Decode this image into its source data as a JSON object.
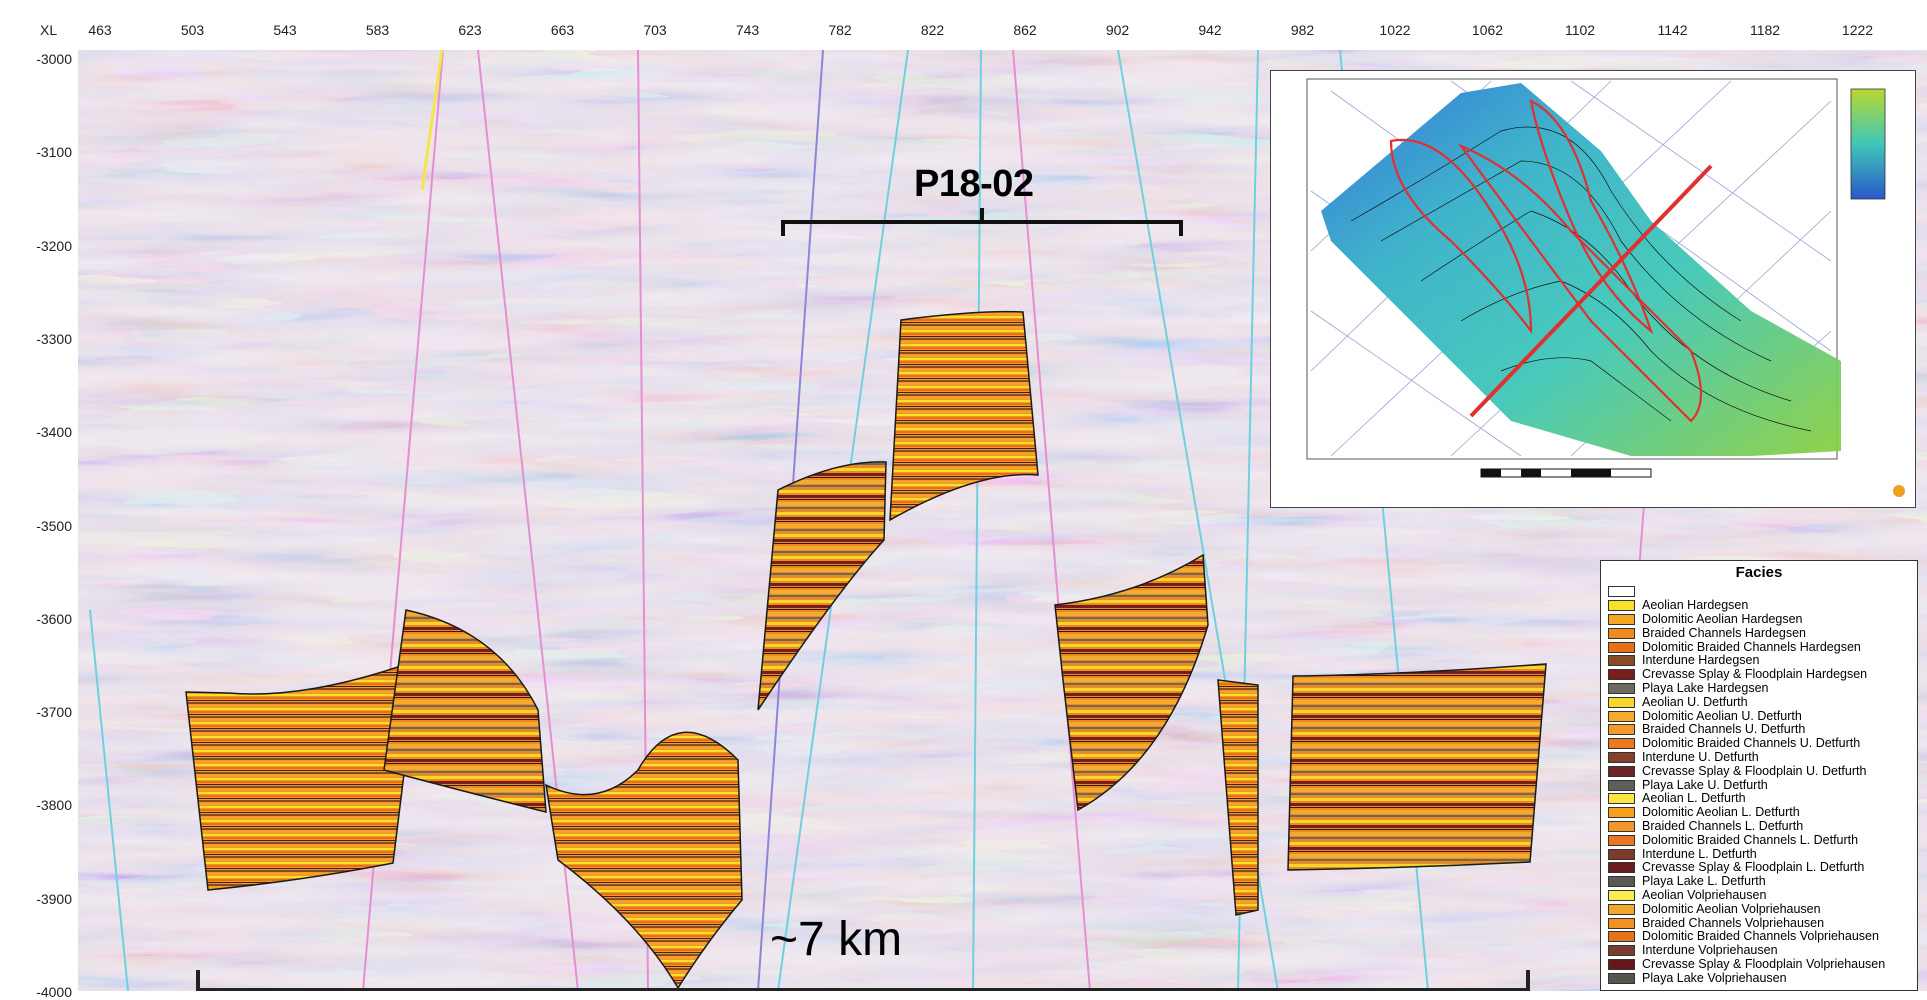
{
  "axis": {
    "x_prefix": "XL",
    "x_ticks": [
      "463",
      "503",
      "543",
      "583",
      "623",
      "663",
      "703",
      "743",
      "782",
      "822",
      "862",
      "902",
      "942",
      "982",
      "1022",
      "1062",
      "1102",
      "1142",
      "1182",
      "1222"
    ],
    "y_ticks": [
      "-3000",
      "-3100",
      "-3200",
      "-3300",
      "-3400",
      "-3500",
      "-3600",
      "-3700",
      "-3800",
      "-3900",
      "-4000"
    ]
  },
  "section": {
    "well_label": "P18-02",
    "scale_label": "~7 km"
  },
  "legend": {
    "title": "Facies",
    "items": [
      {
        "label": "",
        "color": "#ffffff"
      },
      {
        "label": "Aeolian Hardegsen",
        "color": "#f7e12a"
      },
      {
        "label": "Dolomitic Aeolian Hardegsen",
        "color": "#f5a623"
      },
      {
        "label": "Braided Channels Hardegsen",
        "color": "#f08c1e"
      },
      {
        "label": "Dolomitic Braided Channels Hardegsen",
        "color": "#e8701a"
      },
      {
        "label": "Interdune Hardegsen",
        "color": "#8a4a24"
      },
      {
        "label": "Crevasse Splay & Floodplain Hardegsen",
        "color": "#7a1d1d"
      },
      {
        "label": "Playa Lake Hardegsen",
        "color": "#6a6a5e"
      },
      {
        "label": "Aeolian U. Detfurth",
        "color": "#f7d52a"
      },
      {
        "label": "Dolomitic Aeolian U. Detfurth",
        "color": "#f5a92e"
      },
      {
        "label": "Braided Channels U. Detfurth",
        "color": "#f29a28"
      },
      {
        "label": "Dolomitic Braided Channels U. Detfurth",
        "color": "#ea7a20"
      },
      {
        "label": "Interdune U. Detfurth",
        "color": "#83402a"
      },
      {
        "label": "Crevasse Splay & Floodplain U. Detfurth",
        "color": "#6e2424"
      },
      {
        "label": "Playa Lake U. Detfurth",
        "color": "#5e5e58"
      },
      {
        "label": "Aeolian L. Detfurth",
        "color": "#f9e640"
      },
      {
        "label": "Dolomitic Aeolian L. Detfurth",
        "color": "#f4a21c"
      },
      {
        "label": "Braided Channels L. Detfurth",
        "color": "#f1962a"
      },
      {
        "label": "Dolomitic Braided Channels L. Detfurth",
        "color": "#e77722"
      },
      {
        "label": "Interdune L. Detfurth",
        "color": "#7c3b2c"
      },
      {
        "label": "Crevasse Splay & Floodplain L. Detfurth",
        "color": "#6a1b1b"
      },
      {
        "label": "Playa Lake L. Detfurth",
        "color": "#5a5a50"
      },
      {
        "label": "Aeolian Volpriehausen",
        "color": "#f8ec50"
      },
      {
        "label": "Dolomitic Aeolian Volpriehausen",
        "color": "#f3a72a"
      },
      {
        "label": "Braided Channels Volpriehausen",
        "color": "#f0921f"
      },
      {
        "label": "Dolomitic Braided Channels Volpriehausen",
        "color": "#e6731c"
      },
      {
        "label": "Interdune Volpriehausen",
        "color": "#7a3c30"
      },
      {
        "label": "Crevasse Splay & Floodplain Volpriehausen",
        "color": "#661818"
      },
      {
        "label": "Playa Lake Volpriehausen",
        "color": "#555550"
      }
    ]
  },
  "colors": {
    "seismic_red": "#b2534f",
    "seismic_blue": "#3b4fa8",
    "fault_pink": "#e58fd0",
    "fault_cyan": "#6fd0e0",
    "fault_purple": "#8c86d8",
    "well_track": "#f2e64a",
    "map_outline": "#e03030"
  }
}
